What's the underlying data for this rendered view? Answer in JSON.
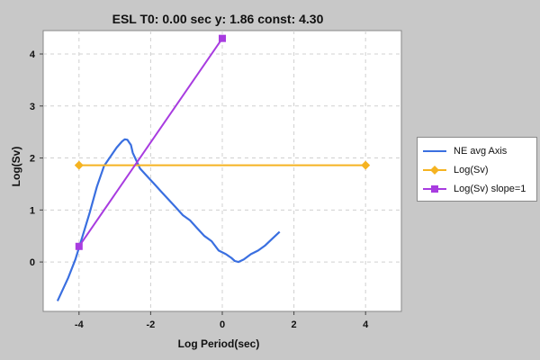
{
  "chart_data": {
    "type": "line",
    "title": "ESL T0: 0.00 sec  y: 1.86 const: 4.30",
    "xlabel": "Log Period(sec)",
    "ylabel": "Log(Sv)",
    "xlim": [
      -5.0,
      5.0
    ],
    "ylim": [
      -0.95,
      4.45
    ],
    "xticks": [
      -4,
      -2,
      0,
      2,
      4
    ],
    "yticks": [
      0,
      1,
      2,
      3,
      4
    ],
    "grid": true,
    "legend_position": "right",
    "series": [
      {
        "name": "NE avg Axis",
        "color": "#3a6fe0",
        "marker": "none",
        "x": [
          -4.6,
          -4.3,
          -4.1,
          -3.9,
          -3.7,
          -3.5,
          -3.3,
          -3.1,
          -2.95,
          -2.8,
          -2.72,
          -2.65,
          -2.6,
          -2.55,
          -2.5,
          -2.4,
          -2.3,
          -2.1,
          -1.9,
          -1.7,
          -1.5,
          -1.3,
          -1.1,
          -0.9,
          -0.7,
          -0.5,
          -0.3,
          -0.1,
          0.1,
          0.25,
          0.35,
          0.45,
          0.6,
          0.8,
          1.0,
          1.2,
          1.4,
          1.6
        ],
        "y": [
          -0.75,
          -0.3,
          0.05,
          0.5,
          0.95,
          1.45,
          1.85,
          2.05,
          2.2,
          2.32,
          2.36,
          2.35,
          2.3,
          2.25,
          2.1,
          1.95,
          1.8,
          1.65,
          1.5,
          1.35,
          1.2,
          1.05,
          0.9,
          0.8,
          0.65,
          0.5,
          0.4,
          0.22,
          0.15,
          0.08,
          0.02,
          0.0,
          0.05,
          0.15,
          0.22,
          0.32,
          0.45,
          0.58
        ]
      },
      {
        "name": "Log(Sv)",
        "color": "#f5b321",
        "marker": "diamond",
        "x": [
          -4,
          4
        ],
        "y": [
          1.86,
          1.86
        ]
      },
      {
        "name": "Log(Sv) slope=1",
        "color": "#a83ce0",
        "marker": "square",
        "x": [
          -4,
          0
        ],
        "y": [
          0.3,
          4.3
        ]
      }
    ]
  }
}
